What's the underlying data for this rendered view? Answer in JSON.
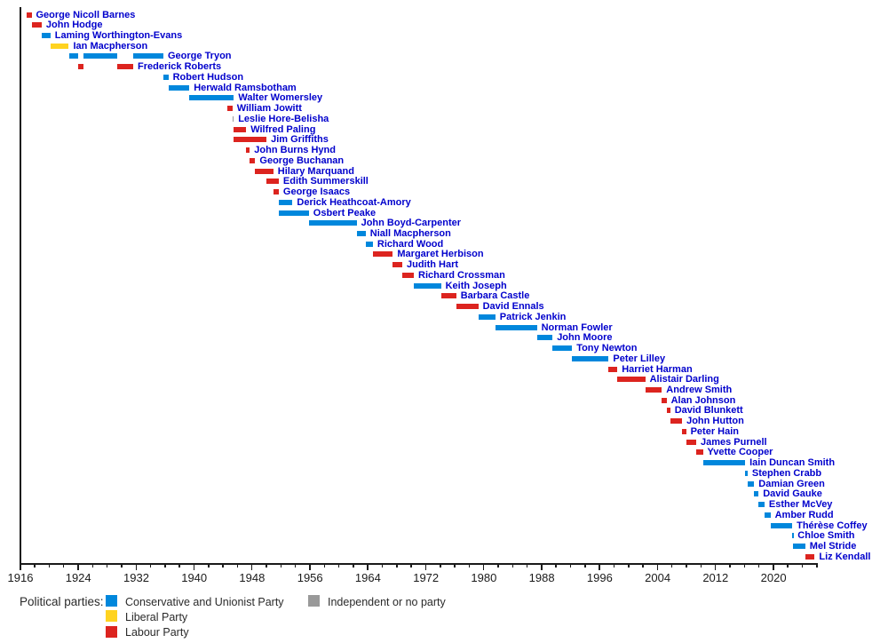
{
  "chart_data": {
    "type": "bar",
    "subtype": "gantt-timeline",
    "title": "",
    "xlabel": "",
    "ylabel": "",
    "axis": {
      "year_start": 1916,
      "year_end": 2026,
      "labeled_tick_interval": 8,
      "minor_tick_interval": 2,
      "tick_labels": [
        "1916",
        "1924",
        "1932",
        "1940",
        "1948",
        "1956",
        "1964",
        "1972",
        "1980",
        "1988",
        "1996",
        "2004",
        "2012",
        "2020"
      ],
      "grid": false
    },
    "party_colors": {
      "conservative": "#0087DC",
      "liberal": "#FFD320",
      "labour": "#DC241F",
      "independent": "#999999"
    },
    "name_text_color": "#0000CC",
    "axis_color": "#1a1a1a",
    "people": [
      {
        "name": "George Nicoll Barnes",
        "party": "labour",
        "terms": [
          [
            1916.92,
            1917.65
          ]
        ]
      },
      {
        "name": "John Hodge",
        "party": "labour",
        "terms": [
          [
            1917.65,
            1919.05
          ]
        ]
      },
      {
        "name": "Laming Worthington-Evans",
        "party": "conservative",
        "terms": [
          [
            1919.05,
            1920.27
          ]
        ]
      },
      {
        "name": "Ian Macpherson",
        "party": "liberal",
        "terms": [
          [
            1920.27,
            1922.8
          ]
        ]
      },
      {
        "name": "George Tryon",
        "party": "conservative",
        "terms": [
          [
            1922.8,
            1924.05
          ],
          [
            1924.87,
            1929.45
          ],
          [
            1931.7,
            1935.87
          ]
        ]
      },
      {
        "name": "Frederick Roberts",
        "party": "labour",
        "terms": [
          [
            1924.05,
            1924.87
          ],
          [
            1929.45,
            1931.7
          ]
        ]
      },
      {
        "name": "Robert Hudson",
        "party": "conservative",
        "terms": [
          [
            1935.87,
            1936.55
          ]
        ]
      },
      {
        "name": "Herwald Ramsbotham",
        "party": "conservative",
        "terms": [
          [
            1936.55,
            1939.45
          ]
        ]
      },
      {
        "name": "Walter Womersley",
        "party": "conservative",
        "terms": [
          [
            1939.45,
            1945.6
          ]
        ]
      },
      {
        "name": "William Jowitt",
        "party": "labour",
        "terms": [
          [
            1944.75,
            1945.4
          ]
        ]
      },
      {
        "name": "Leslie Hore-Belisha",
        "party": "independent",
        "terms": [
          [
            1945.4,
            1945.58
          ]
        ]
      },
      {
        "name": "Wilfred Paling",
        "party": "labour",
        "terms": [
          [
            1945.6,
            1947.3
          ]
        ]
      },
      {
        "name": "Jim Griffiths",
        "party": "labour",
        "terms": [
          [
            1945.6,
            1950.1
          ]
        ]
      },
      {
        "name": "John Burns Hynd",
        "party": "labour",
        "terms": [
          [
            1947.3,
            1947.8
          ]
        ]
      },
      {
        "name": "George Buchanan",
        "party": "labour",
        "terms": [
          [
            1947.8,
            1948.55
          ]
        ]
      },
      {
        "name": "Hilary Marquand",
        "party": "labour",
        "terms": [
          [
            1948.55,
            1951.05
          ]
        ]
      },
      {
        "name": "Edith Summerskill",
        "party": "labour",
        "terms": [
          [
            1950.1,
            1951.8
          ]
        ]
      },
      {
        "name": "George Isaacs",
        "party": "labour",
        "terms": [
          [
            1951.05,
            1951.8
          ]
        ]
      },
      {
        "name": "Derick Heathcoat-Amory",
        "party": "conservative",
        "terms": [
          [
            1951.85,
            1953.7
          ]
        ]
      },
      {
        "name": "Osbert Peake",
        "party": "conservative",
        "terms": [
          [
            1951.85,
            1955.95
          ]
        ]
      },
      {
        "name": "John Boyd-Carpenter",
        "party": "conservative",
        "terms": [
          [
            1955.95,
            1962.55
          ]
        ]
      },
      {
        "name": "Niall Macpherson",
        "party": "conservative",
        "terms": [
          [
            1962.55,
            1963.8
          ]
        ]
      },
      {
        "name": "Richard Wood",
        "party": "conservative",
        "terms": [
          [
            1963.8,
            1964.8
          ]
        ]
      },
      {
        "name": "Margaret Herbison",
        "party": "labour",
        "terms": [
          [
            1964.8,
            1967.55
          ]
        ]
      },
      {
        "name": "Judith Hart",
        "party": "labour",
        "terms": [
          [
            1967.55,
            1968.85
          ]
        ]
      },
      {
        "name": "Richard Crossman",
        "party": "labour",
        "terms": [
          [
            1968.85,
            1970.45
          ]
        ]
      },
      {
        "name": "Keith Joseph",
        "party": "conservative",
        "terms": [
          [
            1970.45,
            1974.2
          ]
        ]
      },
      {
        "name": "Barbara Castle",
        "party": "labour",
        "terms": [
          [
            1974.2,
            1976.3
          ]
        ]
      },
      {
        "name": "David Ennals",
        "party": "labour",
        "terms": [
          [
            1976.3,
            1979.35
          ]
        ]
      },
      {
        "name": "Patrick Jenkin",
        "party": "conservative",
        "terms": [
          [
            1979.35,
            1981.7
          ]
        ]
      },
      {
        "name": "Norman Fowler",
        "party": "conservative",
        "terms": [
          [
            1981.7,
            1987.45
          ]
        ]
      },
      {
        "name": "John Moore",
        "party": "conservative",
        "terms": [
          [
            1987.45,
            1989.6
          ]
        ]
      },
      {
        "name": "Tony Newton",
        "party": "conservative",
        "terms": [
          [
            1989.6,
            1992.3
          ]
        ]
      },
      {
        "name": "Peter Lilley",
        "party": "conservative",
        "terms": [
          [
            1992.3,
            1997.35
          ]
        ]
      },
      {
        "name": "Harriet Harman",
        "party": "labour",
        "terms": [
          [
            1997.35,
            1998.55
          ]
        ]
      },
      {
        "name": "Alistair Darling",
        "party": "labour",
        "terms": [
          [
            1998.55,
            2002.4
          ]
        ]
      },
      {
        "name": "Andrew Smith",
        "party": "labour",
        "terms": [
          [
            2002.4,
            2004.7
          ]
        ]
      },
      {
        "name": "Alan Johnson",
        "party": "labour",
        "terms": [
          [
            2004.7,
            2005.35
          ]
        ]
      },
      {
        "name": "David Blunkett",
        "party": "labour",
        "terms": [
          [
            2005.35,
            2005.85
          ]
        ]
      },
      {
        "name": "John Hutton",
        "party": "labour",
        "terms": [
          [
            2005.85,
            2007.5
          ]
        ]
      },
      {
        "name": "Peter Hain",
        "party": "labour",
        "terms": [
          [
            2007.5,
            2008.05
          ]
        ]
      },
      {
        "name": "James Purnell",
        "party": "labour",
        "terms": [
          [
            2008.05,
            2009.45
          ]
        ]
      },
      {
        "name": "Yvette Cooper",
        "party": "labour",
        "terms": [
          [
            2009.45,
            2010.37
          ]
        ]
      },
      {
        "name": "Iain Duncan Smith",
        "party": "conservative",
        "terms": [
          [
            2010.37,
            2016.2
          ]
        ]
      },
      {
        "name": "Stephen Crabb",
        "party": "conservative",
        "terms": [
          [
            2016.2,
            2016.55
          ]
        ]
      },
      {
        "name": "Damian Green",
        "party": "conservative",
        "terms": [
          [
            2016.55,
            2017.45
          ]
        ]
      },
      {
        "name": "David Gauke",
        "party": "conservative",
        "terms": [
          [
            2017.45,
            2018.05
          ]
        ]
      },
      {
        "name": "Esther McVey",
        "party": "conservative",
        "terms": [
          [
            2018.05,
            2018.87
          ]
        ]
      },
      {
        "name": "Amber Rudd",
        "party": "conservative",
        "terms": [
          [
            2018.87,
            2019.7
          ]
        ]
      },
      {
        "name": "Thérèse Coffey",
        "party": "conservative",
        "terms": [
          [
            2019.7,
            2022.7
          ]
        ]
      },
      {
        "name": "Chloe Smith",
        "party": "conservative",
        "terms": [
          [
            2022.7,
            2022.85
          ]
        ]
      },
      {
        "name": "Mel Stride",
        "party": "conservative",
        "terms": [
          [
            2022.85,
            2024.5
          ]
        ]
      },
      {
        "name": "Liz Kendall",
        "party": "labour",
        "terms": [
          [
            2024.5,
            2025.8
          ]
        ]
      }
    ],
    "legend_position": "bottom"
  },
  "legend": {
    "title": "Political parties:",
    "items": [
      {
        "label": "Conservative and Unionist Party",
        "color": "#0087DC",
        "col": 0,
        "row": 0
      },
      {
        "label": "Liberal Party",
        "color": "#FFD320",
        "col": 0,
        "row": 1
      },
      {
        "label": "Labour Party",
        "color": "#DC241F",
        "col": 0,
        "row": 2
      },
      {
        "label": "Independent or no party",
        "color": "#999999",
        "col": 1,
        "row": 0
      }
    ]
  }
}
